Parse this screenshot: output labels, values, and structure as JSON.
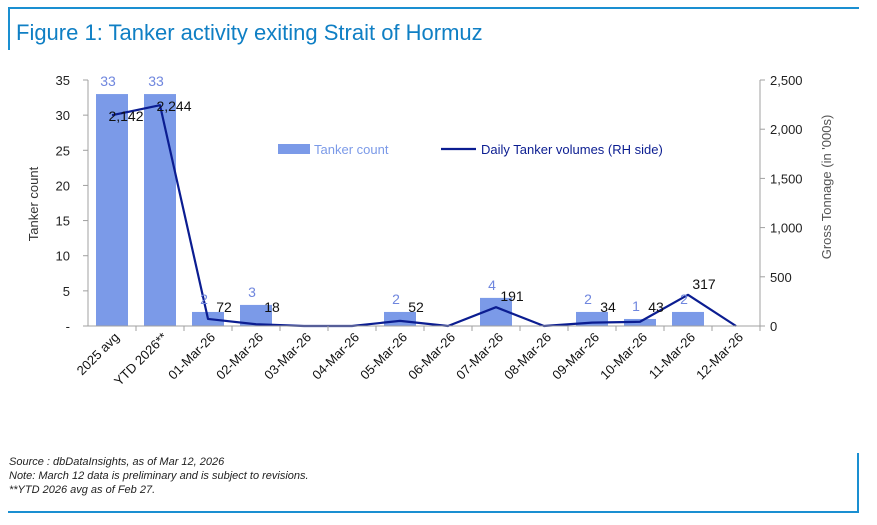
{
  "figure": {
    "title": "Figure 1: Tanker activity exiting Strait of Hormuz",
    "notes": [
      "Source : dbDataInsights, as of Mar 12, 2026",
      "Note: March 12 data is preliminary and is subject to revisions.",
      "**YTD 2026 avg as of Feb 27."
    ]
  },
  "colors": {
    "bar": "#7b9ae8",
    "bar_label": "#6f86de",
    "line": "#0b1d91",
    "accent": "#1a8fd1"
  },
  "chart_data": {
    "type": "bar",
    "categories": [
      "2025 avg",
      "YTD 2026**",
      "01-Mar-26",
      "02-Mar-26",
      "03-Mar-26",
      "04-Mar-26",
      "05-Mar-26",
      "06-Mar-26",
      "07-Mar-26",
      "08-Mar-26",
      "09-Mar-26",
      "10-Mar-26",
      "11-Mar-26",
      "12-Mar-26"
    ],
    "series": [
      {
        "name": "Tanker count",
        "kind": "bar",
        "axis": "left",
        "values": [
          33,
          33,
          2,
          3,
          0,
          0,
          2,
          0,
          4,
          0,
          2,
          1,
          2,
          0
        ],
        "labels": [
          "33",
          "33",
          "2",
          "3",
          "",
          "",
          "2",
          "",
          "4",
          "",
          "2",
          "1",
          "2",
          ""
        ]
      },
      {
        "name": "Daily Tanker volumes (RH side)",
        "kind": "line",
        "axis": "right",
        "values": [
          2142,
          2244,
          72,
          18,
          0,
          0,
          52,
          0,
          191,
          0,
          34,
          43,
          317,
          0
        ],
        "labels": [
          "2,142",
          "2,244",
          "72",
          "18",
          "",
          "",
          "52",
          "",
          "191",
          "",
          "34",
          "43",
          "317",
          ""
        ]
      }
    ],
    "ylabel": "Tanker count",
    "y2label": "Gross Tonnage (in '000s)",
    "ylim": [
      0,
      35
    ],
    "y2lim": [
      0,
      2500
    ],
    "yticks": [
      "-",
      "5",
      "10",
      "15",
      "20",
      "25",
      "30",
      "35"
    ],
    "y2ticks": [
      "0",
      "500",
      "1,000",
      "1,500",
      "2,000",
      "2,500"
    ],
    "legend_position": "top-center"
  }
}
